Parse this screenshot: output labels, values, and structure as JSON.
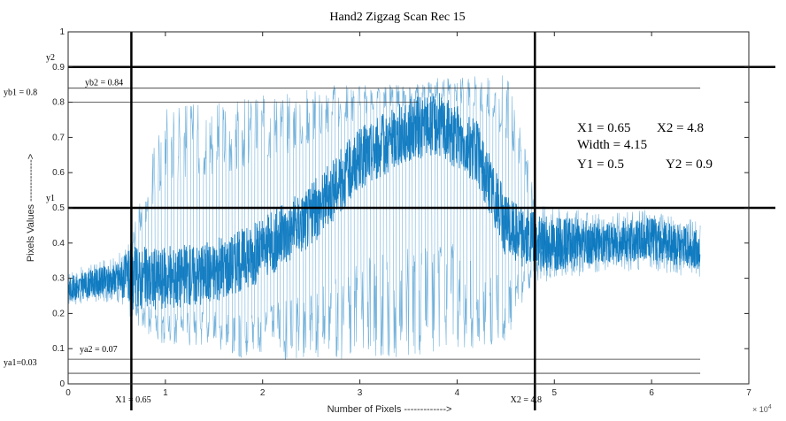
{
  "chart_data": {
    "type": "line",
    "title": "Hand2 Zigzag Scan Rec 15",
    "xlabel": "Number of Pixels  ------------->",
    "ylabel": "Pixels Values  ------------->",
    "xlim": [
      0,
      7
    ],
    "ylim": [
      0,
      1
    ],
    "x_multiplier": "× 10^4",
    "x_multiplier_text": "10",
    "x_multiplier_exp": "4",
    "x_ticks": [
      0,
      1,
      2,
      3,
      4,
      5,
      6,
      7
    ],
    "x_tick_labels": [
      "0",
      "1",
      "2",
      "3",
      "4",
      "5",
      "6",
      "7"
    ],
    "y_ticks": [
      0,
      0.1,
      0.2,
      0.3,
      0.4,
      0.5,
      0.6,
      0.7,
      0.8,
      0.9,
      1
    ],
    "y_tick_labels": [
      "0",
      "0.1",
      "0.2",
      "0.3",
      "0.4",
      "0.5",
      "0.6",
      "0.7",
      "0.8",
      "0.9",
      "1"
    ],
    "series_color": "#0072bd",
    "signal_envelope": [
      {
        "x": 0.0,
        "low": 0.22,
        "high": 0.32,
        "mid": 0.27
      },
      {
        "x": 0.5,
        "low": 0.24,
        "high": 0.37,
        "mid": 0.3
      },
      {
        "x": 0.65,
        "low": 0.18,
        "high": 0.42,
        "mid": 0.3
      },
      {
        "x": 1.0,
        "low": 0.1,
        "high": 0.8,
        "mid": 0.3
      },
      {
        "x": 1.5,
        "low": 0.1,
        "high": 0.8,
        "mid": 0.32
      },
      {
        "x": 2.0,
        "low": 0.05,
        "high": 0.82,
        "mid": 0.38
      },
      {
        "x": 2.5,
        "low": 0.07,
        "high": 0.85,
        "mid": 0.48
      },
      {
        "x": 3.0,
        "low": 0.07,
        "high": 0.85,
        "mid": 0.64
      },
      {
        "x": 3.5,
        "low": 0.07,
        "high": 0.85,
        "mid": 0.72
      },
      {
        "x": 3.8,
        "low": 0.08,
        "high": 0.87,
        "mid": 0.74
      },
      {
        "x": 4.2,
        "low": 0.1,
        "high": 0.88,
        "mid": 0.66
      },
      {
        "x": 4.5,
        "low": 0.12,
        "high": 0.9,
        "mid": 0.45
      },
      {
        "x": 4.8,
        "low": 0.3,
        "high": 0.55,
        "mid": 0.4
      },
      {
        "x": 5.5,
        "low": 0.32,
        "high": 0.48,
        "mid": 0.4
      },
      {
        "x": 6.0,
        "low": 0.32,
        "high": 0.5,
        "mid": 0.41
      },
      {
        "x": 6.5,
        "low": 0.3,
        "high": 0.46,
        "mid": 0.38
      }
    ],
    "vertical_lines": [
      {
        "x": 0.65,
        "label": "X1 = 0.65"
      },
      {
        "x": 4.8,
        "label": "X2 = 4.8"
      }
    ],
    "horizontal_lines_bold": [
      {
        "y": 0.9,
        "label": "y2"
      },
      {
        "y": 0.5,
        "label": "y1"
      }
    ],
    "horizontal_lines_thin": [
      {
        "y": 0.84,
        "x_end": 6.5,
        "label": "yb2 = 0.84"
      },
      {
        "y": 0.8,
        "x_end": 3.6,
        "label": "yb1 = 0.8"
      },
      {
        "y": 0.07,
        "x_end": 6.5,
        "label": "ya2 = 0.07"
      },
      {
        "y": 0.03,
        "x_end": 6.5,
        "label": "ya1=0.03"
      }
    ],
    "annotation_box": {
      "line1_a": "X1 = 0.65",
      "line1_b": "X2 = 4.8",
      "line2": "Width = 4.15",
      "line3_a": "Y1 = 0.5",
      "line3_b": "Y2 = 0.9"
    }
  }
}
